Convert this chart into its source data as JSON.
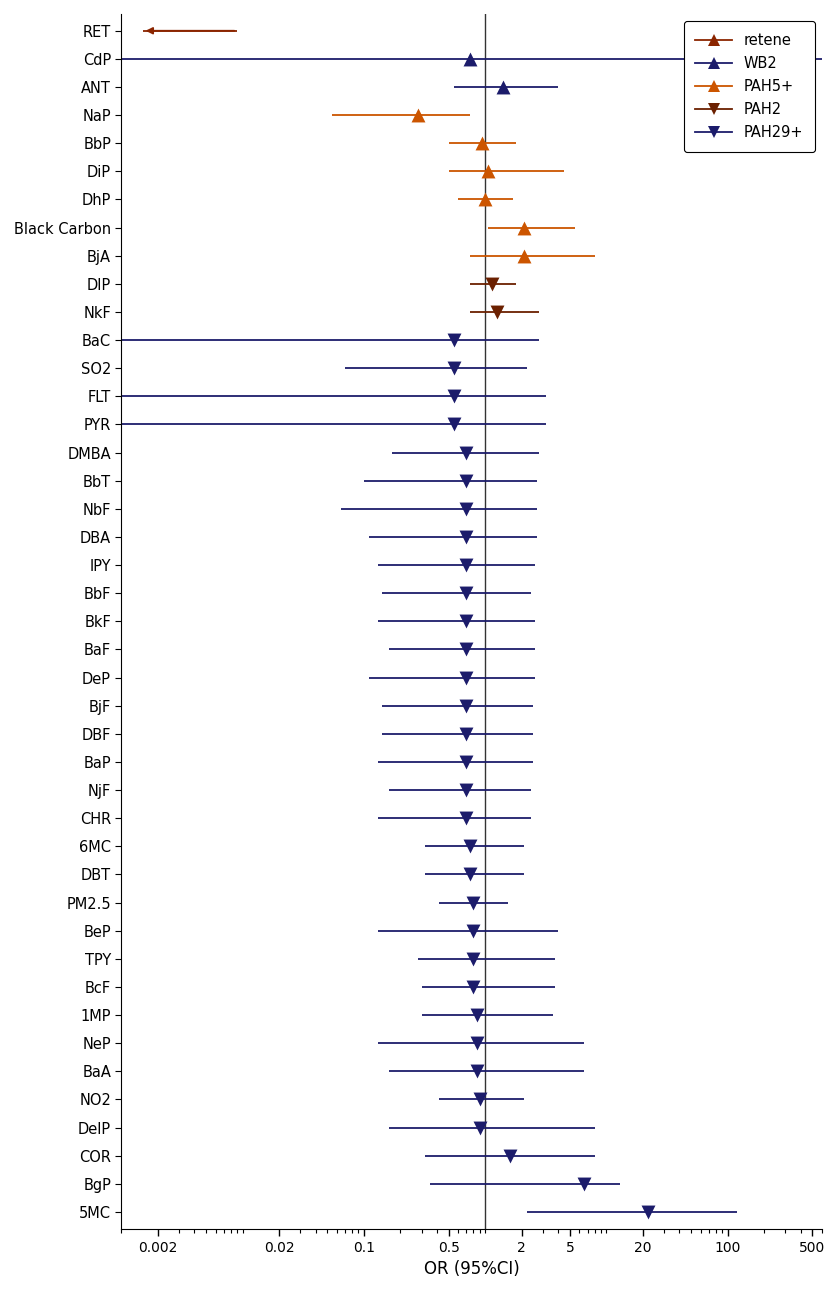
{
  "title": "",
  "xlabel": "OR (95%CI)",
  "xticks": [
    0.002,
    0.02,
    0.1,
    0.5,
    2,
    5,
    20,
    100,
    500
  ],
  "xtick_labels": [
    "0.002",
    "0.02",
    "0.1",
    "0.5",
    "2",
    "5",
    "20",
    "100",
    "500"
  ],
  "vline": 1.0,
  "clusters": {
    "retene": {
      "color": "#8B2500",
      "marker": "^"
    },
    "WB2": {
      "color": "#1C1C6B",
      "marker": "^"
    },
    "PAH5+": {
      "color": "#CC5500",
      "marker": "^"
    },
    "PAH2": {
      "color": "#6B2000",
      "marker": "v"
    },
    "PAH29+": {
      "color": "#1C1C6B",
      "marker": "v"
    }
  },
  "rows": [
    {
      "label": "RET",
      "cluster": "retene",
      "or": 0.0015,
      "ci_lo": 0.0015,
      "ci_hi": 0.009,
      "arrow_left": true
    },
    {
      "label": "CdP",
      "cluster": "WB2",
      "or": 0.75,
      "ci_lo": 0.001,
      "ci_hi": 600,
      "arrow_left": false
    },
    {
      "label": "ANT",
      "cluster": "WB2",
      "or": 1.4,
      "ci_lo": 0.55,
      "ci_hi": 4.0,
      "arrow_left": false
    },
    {
      "label": "NaP",
      "cluster": "PAH5+",
      "or": 0.28,
      "ci_lo": 0.055,
      "ci_hi": 0.75,
      "arrow_left": false
    },
    {
      "label": "BbP",
      "cluster": "PAH5+",
      "or": 0.95,
      "ci_lo": 0.5,
      "ci_hi": 1.8,
      "arrow_left": false
    },
    {
      "label": "DiP",
      "cluster": "PAH5+",
      "or": 1.05,
      "ci_lo": 0.5,
      "ci_hi": 4.5,
      "arrow_left": false
    },
    {
      "label": "DhP",
      "cluster": "PAH5+",
      "or": 1.0,
      "ci_lo": 0.6,
      "ci_hi": 1.7,
      "arrow_left": false
    },
    {
      "label": "Black Carbon",
      "cluster": "PAH5+",
      "or": 2.1,
      "ci_lo": 1.05,
      "ci_hi": 5.5,
      "arrow_left": false
    },
    {
      "label": "BjA",
      "cluster": "PAH5+",
      "or": 2.1,
      "ci_lo": 0.75,
      "ci_hi": 8.0,
      "arrow_left": false
    },
    {
      "label": "DIP",
      "cluster": "PAH2",
      "or": 1.15,
      "ci_lo": 0.75,
      "ci_hi": 1.8,
      "arrow_left": false
    },
    {
      "label": "NkF",
      "cluster": "PAH2",
      "or": 1.25,
      "ci_lo": 0.75,
      "ci_hi": 2.8,
      "arrow_left": false
    },
    {
      "label": "BaC",
      "cluster": "PAH29+",
      "or": 0.55,
      "ci_lo": 0.001,
      "ci_hi": 2.8,
      "arrow_left": false
    },
    {
      "label": "SO2",
      "cluster": "PAH29+",
      "or": 0.55,
      "ci_lo": 0.07,
      "ci_hi": 2.2,
      "arrow_left": false
    },
    {
      "label": "FLT",
      "cluster": "PAH29+",
      "or": 0.55,
      "ci_lo": 0.001,
      "ci_hi": 3.2,
      "arrow_left": false
    },
    {
      "label": "PYR",
      "cluster": "PAH29+",
      "or": 0.55,
      "ci_lo": 0.001,
      "ci_hi": 3.2,
      "arrow_left": false
    },
    {
      "label": "DMBA",
      "cluster": "PAH29+",
      "or": 0.7,
      "ci_lo": 0.17,
      "ci_hi": 2.8,
      "arrow_left": false
    },
    {
      "label": "BbT",
      "cluster": "PAH29+",
      "or": 0.7,
      "ci_lo": 0.1,
      "ci_hi": 2.7,
      "arrow_left": false
    },
    {
      "label": "NbF",
      "cluster": "PAH29+",
      "or": 0.7,
      "ci_lo": 0.065,
      "ci_hi": 2.7,
      "arrow_left": false
    },
    {
      "label": "DBA",
      "cluster": "PAH29+",
      "or": 0.7,
      "ci_lo": 0.11,
      "ci_hi": 2.7,
      "arrow_left": false
    },
    {
      "label": "IPY",
      "cluster": "PAH29+",
      "or": 0.7,
      "ci_lo": 0.13,
      "ci_hi": 2.6,
      "arrow_left": false
    },
    {
      "label": "BbF",
      "cluster": "PAH29+",
      "or": 0.7,
      "ci_lo": 0.14,
      "ci_hi": 2.4,
      "arrow_left": false
    },
    {
      "label": "BkF",
      "cluster": "PAH29+",
      "or": 0.7,
      "ci_lo": 0.13,
      "ci_hi": 2.6,
      "arrow_left": false
    },
    {
      "label": "BaF",
      "cluster": "PAH29+",
      "or": 0.7,
      "ci_lo": 0.16,
      "ci_hi": 2.6,
      "arrow_left": false
    },
    {
      "label": "DeP",
      "cluster": "PAH29+",
      "or": 0.7,
      "ci_lo": 0.11,
      "ci_hi": 2.6,
      "arrow_left": false
    },
    {
      "label": "BjF",
      "cluster": "PAH29+",
      "or": 0.7,
      "ci_lo": 0.14,
      "ci_hi": 2.5,
      "arrow_left": false
    },
    {
      "label": "DBF",
      "cluster": "PAH29+",
      "or": 0.7,
      "ci_lo": 0.14,
      "ci_hi": 2.5,
      "arrow_left": false
    },
    {
      "label": "BaP",
      "cluster": "PAH29+",
      "or": 0.7,
      "ci_lo": 0.13,
      "ci_hi": 2.5,
      "arrow_left": false
    },
    {
      "label": "NjF",
      "cluster": "PAH29+",
      "or": 0.7,
      "ci_lo": 0.16,
      "ci_hi": 2.4,
      "arrow_left": false
    },
    {
      "label": "CHR",
      "cluster": "PAH29+",
      "or": 0.7,
      "ci_lo": 0.13,
      "ci_hi": 2.4,
      "arrow_left": false
    },
    {
      "label": "6MC",
      "cluster": "PAH29+",
      "or": 0.75,
      "ci_lo": 0.32,
      "ci_hi": 2.1,
      "arrow_left": false
    },
    {
      "label": "DBT",
      "cluster": "PAH29+",
      "or": 0.75,
      "ci_lo": 0.32,
      "ci_hi": 2.1,
      "arrow_left": false
    },
    {
      "label": "PM2.5",
      "cluster": "PAH29+",
      "or": 0.8,
      "ci_lo": 0.42,
      "ci_hi": 1.55,
      "arrow_left": false
    },
    {
      "label": "BeP",
      "cluster": "PAH29+",
      "or": 0.8,
      "ci_lo": 0.13,
      "ci_hi": 4.0,
      "arrow_left": false
    },
    {
      "label": "TPY",
      "cluster": "PAH29+",
      "or": 0.8,
      "ci_lo": 0.28,
      "ci_hi": 3.8,
      "arrow_left": false
    },
    {
      "label": "BcF",
      "cluster": "PAH29+",
      "or": 0.8,
      "ci_lo": 0.3,
      "ci_hi": 3.8,
      "arrow_left": false
    },
    {
      "label": "1MP",
      "cluster": "PAH29+",
      "or": 0.85,
      "ci_lo": 0.3,
      "ci_hi": 3.6,
      "arrow_left": false
    },
    {
      "label": "NeP",
      "cluster": "PAH29+",
      "or": 0.85,
      "ci_lo": 0.13,
      "ci_hi": 6.5,
      "arrow_left": false
    },
    {
      "label": "BaA",
      "cluster": "PAH29+",
      "or": 0.85,
      "ci_lo": 0.16,
      "ci_hi": 6.5,
      "arrow_left": false
    },
    {
      "label": "NO2",
      "cluster": "PAH29+",
      "or": 0.9,
      "ci_lo": 0.42,
      "ci_hi": 2.1,
      "arrow_left": false
    },
    {
      "label": "DelP",
      "cluster": "PAH29+",
      "or": 0.9,
      "ci_lo": 0.16,
      "ci_hi": 8.0,
      "arrow_left": false
    },
    {
      "label": "COR",
      "cluster": "PAH29+",
      "or": 1.6,
      "ci_lo": 0.32,
      "ci_hi": 8.0,
      "arrow_left": false
    },
    {
      "label": "BgP",
      "cluster": "PAH29+",
      "or": 6.5,
      "ci_lo": 0.35,
      "ci_hi": 13.0,
      "arrow_left": false
    },
    {
      "label": "5MC",
      "cluster": "PAH29+",
      "or": 22.0,
      "ci_lo": 2.2,
      "ci_hi": 120.0,
      "arrow_left": false
    }
  ],
  "legend_entries": [
    {
      "label": "retene",
      "cluster": "retene"
    },
    {
      "label": "WB2",
      "cluster": "WB2"
    },
    {
      "label": "PAH5+",
      "cluster": "PAH5+"
    },
    {
      "label": "PAH2",
      "cluster": "PAH2"
    },
    {
      "label": "PAH29+",
      "cluster": "PAH29+"
    }
  ],
  "xmin": 0.001,
  "xmax": 600,
  "background_color": "#FFFFFF",
  "marker_size": 100,
  "fontsize_labels": 10.5,
  "fontsize_ticks": 10,
  "fontsize_axis": 12
}
